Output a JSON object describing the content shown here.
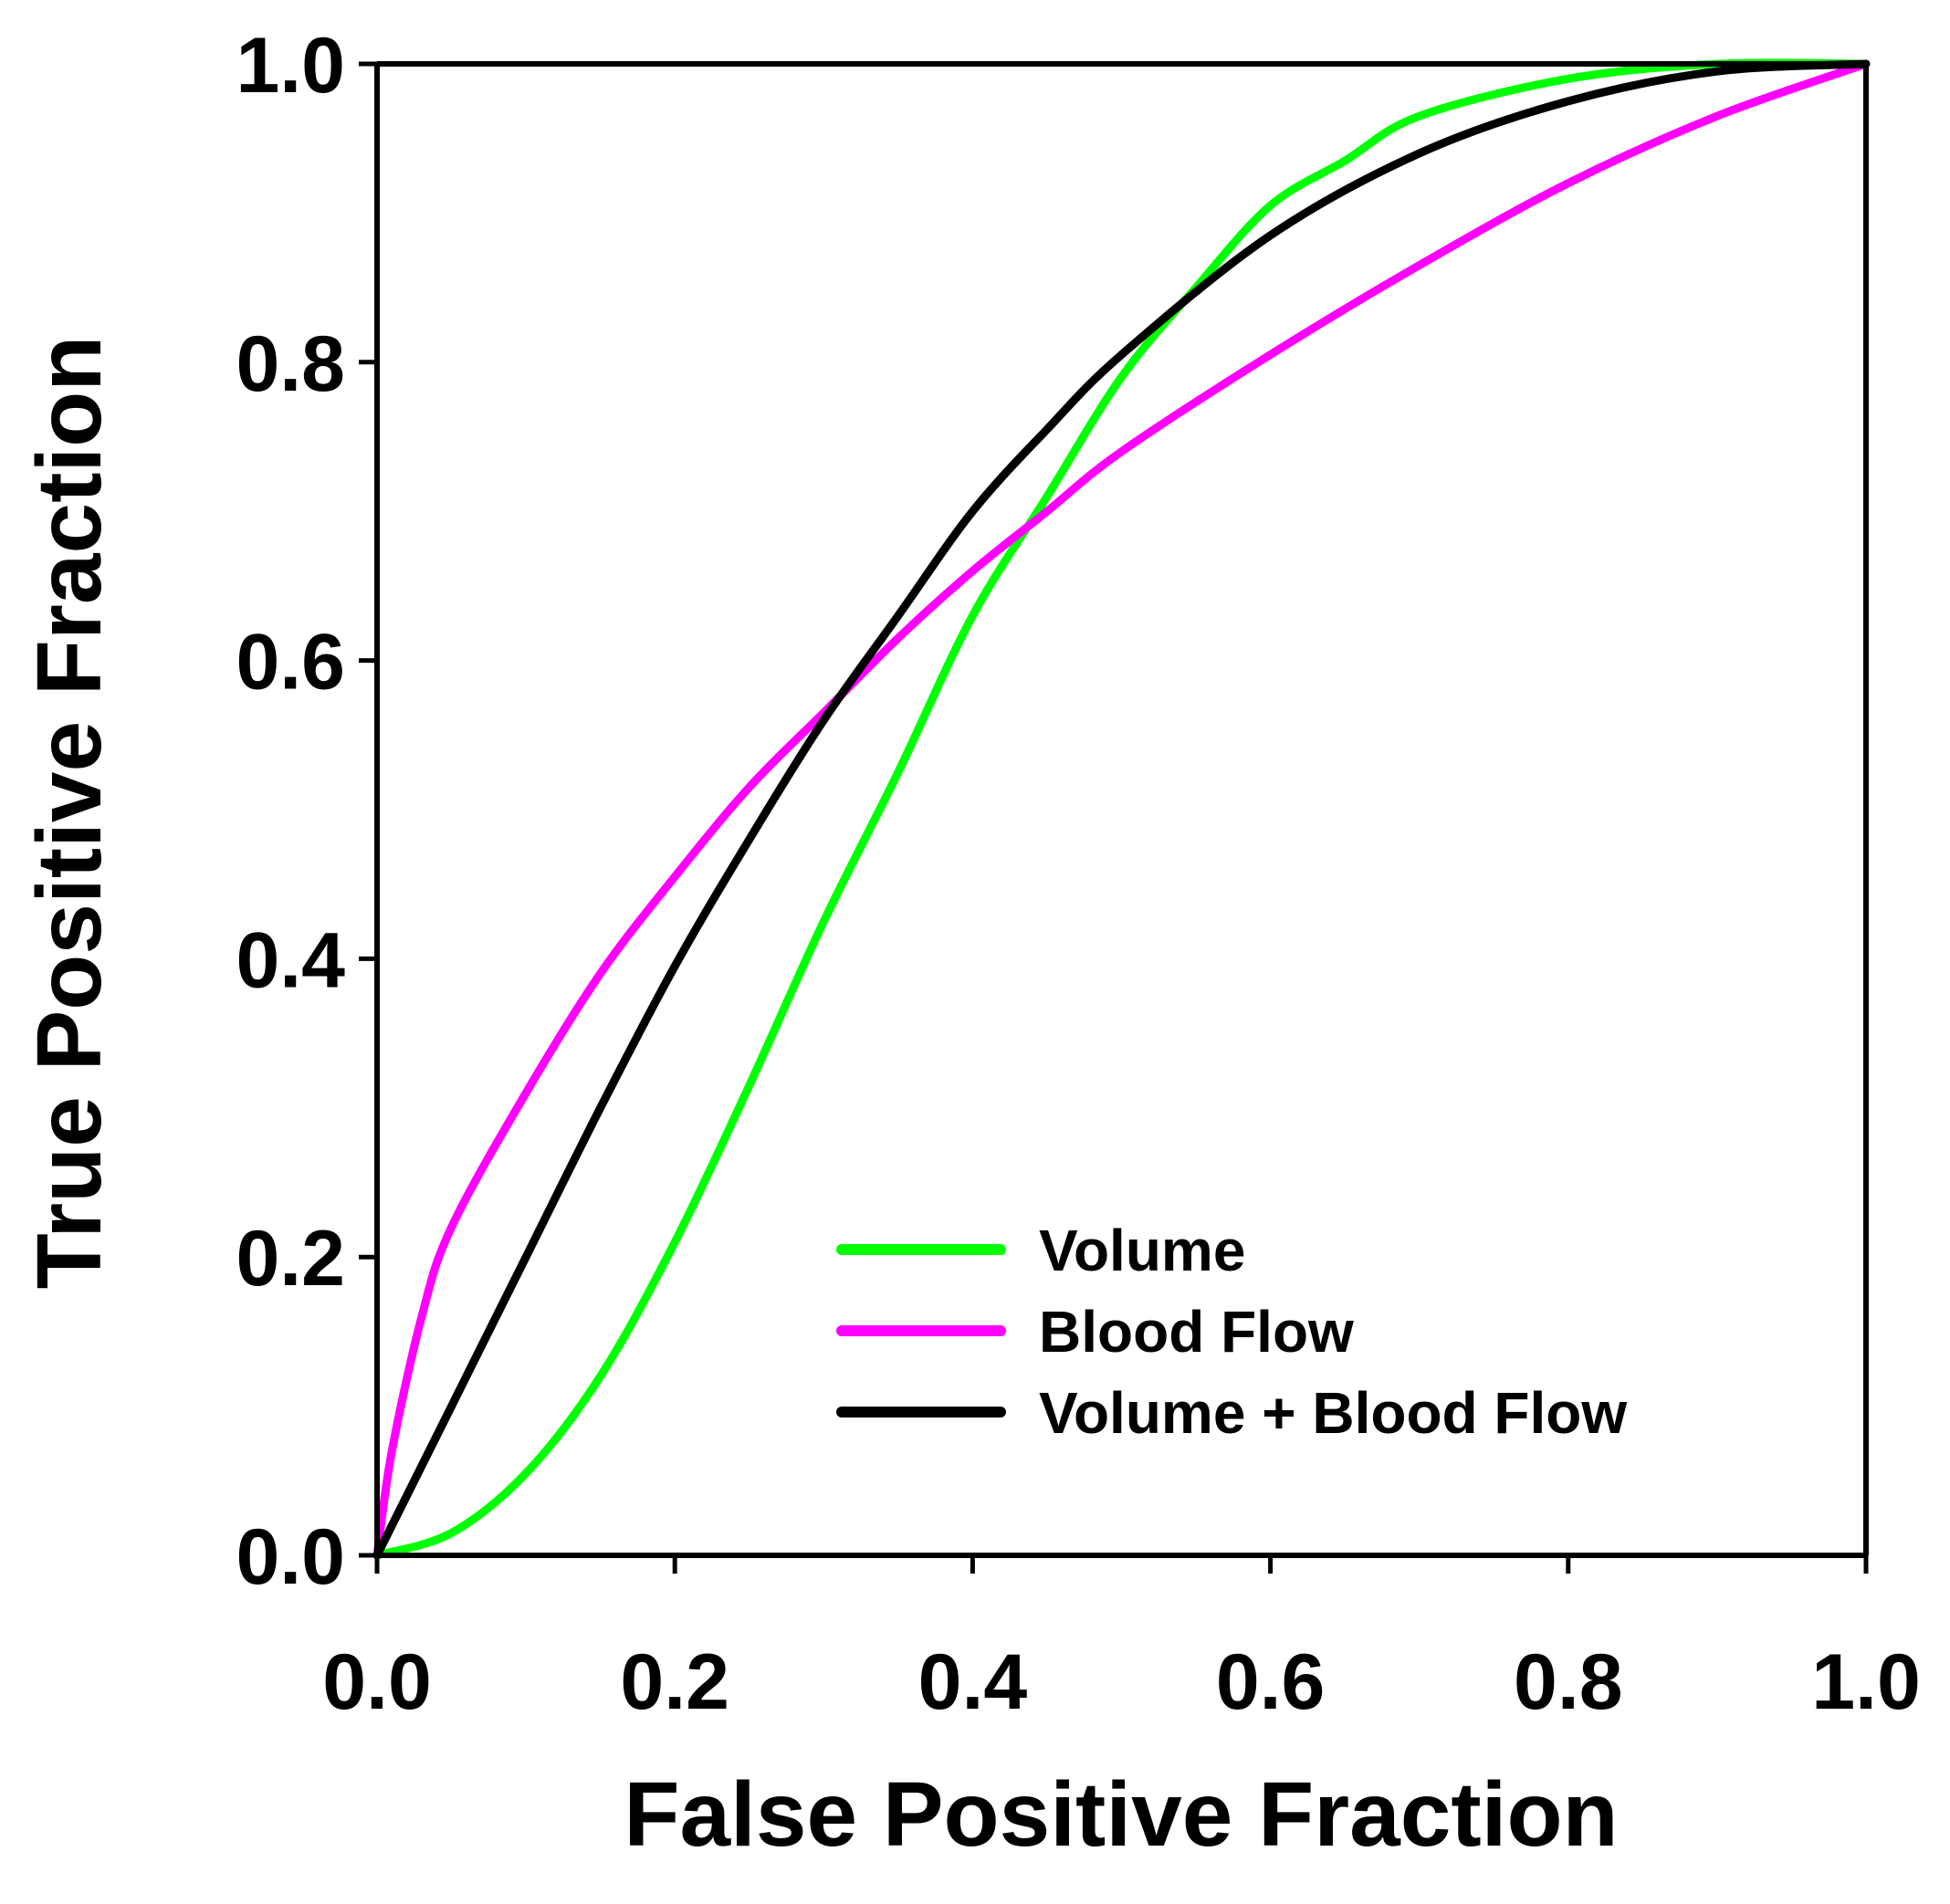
{
  "chart_data": {
    "type": "line",
    "title": "",
    "xlabel": "False Positive Fraction",
    "ylabel": "True Positive Fraction",
    "xlim": [
      0,
      1
    ],
    "ylim": [
      0,
      1
    ],
    "xticks": [
      "0.0",
      "0.2",
      "0.4",
      "0.6",
      "0.8",
      "1.0"
    ],
    "yticks": [
      "0.0",
      "0.2",
      "0.4",
      "0.6",
      "0.8",
      "1.0"
    ],
    "grid": false,
    "legend_position": "bottom-right",
    "series": [
      {
        "name": "Volume",
        "color": "#00ff00",
        "x": [
          0,
          0.05,
          0.1,
          0.15,
          0.2,
          0.25,
          0.3,
          0.35,
          0.4,
          0.45,
          0.5,
          0.55,
          0.6,
          0.65,
          0.7,
          0.8,
          0.9,
          1.0
        ],
        "y": [
          0,
          0.015,
          0.055,
          0.12,
          0.21,
          0.315,
          0.425,
          0.525,
          0.63,
          0.71,
          0.79,
          0.85,
          0.905,
          0.935,
          0.965,
          0.99,
          1.0,
          1.0
        ]
      },
      {
        "name": "Blood Flow",
        "color": "#ff00ff",
        "x": [
          0,
          0.01,
          0.03,
          0.05,
          0.1,
          0.15,
          0.2,
          0.25,
          0.3,
          0.35,
          0.4,
          0.45,
          0.5,
          0.6,
          0.7,
          0.8,
          0.9,
          1.0
        ],
        "y": [
          0,
          0.07,
          0.16,
          0.22,
          0.31,
          0.39,
          0.455,
          0.515,
          0.565,
          0.615,
          0.66,
          0.7,
          0.74,
          0.805,
          0.865,
          0.92,
          0.965,
          1.0
        ]
      },
      {
        "name": "Volume + Blood Flow",
        "color": "#000000",
        "x": [
          0,
          0.05,
          0.1,
          0.15,
          0.2,
          0.25,
          0.3,
          0.35,
          0.4,
          0.45,
          0.5,
          0.6,
          0.7,
          0.8,
          0.9,
          1.0
        ],
        "y": [
          0,
          0.1,
          0.2,
          0.3,
          0.395,
          0.48,
          0.56,
          0.63,
          0.7,
          0.755,
          0.805,
          0.885,
          0.94,
          0.975,
          0.995,
          1.0
        ]
      }
    ]
  }
}
